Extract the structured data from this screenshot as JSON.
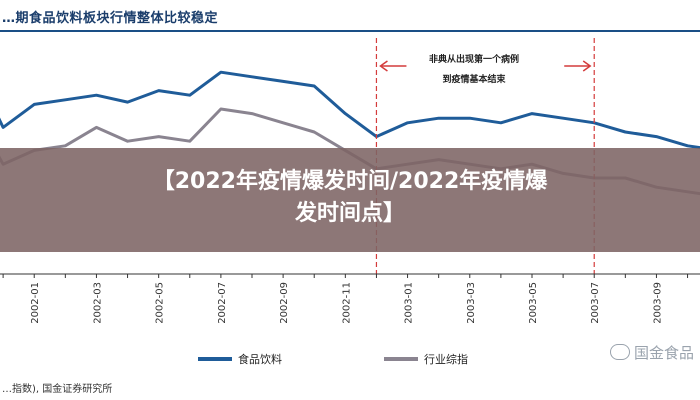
{
  "chart_data": {
    "type": "line",
    "title": "…期食品饮料板块行情整体比较稳定",
    "x_ticks": [
      "2002-01",
      "2002-03",
      "2002-05",
      "2002-07",
      "2002-09",
      "2002-11",
      "2003-01",
      "2003-03",
      "2003-05",
      "2003-07",
      "2003-09"
    ],
    "x_range": [
      "2001-11",
      "2003-11"
    ],
    "y_range": [
      0,
      100
    ],
    "grid": false,
    "legend_position": "bottom",
    "series": [
      {
        "name": "食品饮料",
        "color": "#1f5c99",
        "x": [
          "2001-11",
          "2001-12",
          "2002-01",
          "2002-02",
          "2002-03",
          "2002-04",
          "2002-05",
          "2002-06",
          "2002-07",
          "2002-08",
          "2002-09",
          "2002-10",
          "2002-11",
          "2002-12",
          "2003-01",
          "2003-02",
          "2003-03",
          "2003-04",
          "2003-05",
          "2003-06",
          "2003-07",
          "2003-08",
          "2003-09",
          "2003-10",
          "2003-11"
        ],
        "values": [
          90,
          62,
          72,
          74,
          76,
          73,
          78,
          76,
          86,
          84,
          82,
          80,
          68,
          58,
          64,
          66,
          66,
          64,
          68,
          66,
          64,
          60,
          58,
          54,
          52
        ]
      },
      {
        "name": "行业综指",
        "color": "#8a8490",
        "x": [
          "2001-11",
          "2001-12",
          "2002-01",
          "2002-02",
          "2002-03",
          "2002-04",
          "2002-05",
          "2002-06",
          "2002-07",
          "2002-08",
          "2002-09",
          "2002-10",
          "2002-11",
          "2002-12",
          "2003-01",
          "2003-02",
          "2003-03",
          "2003-04",
          "2003-05",
          "2003-06",
          "2003-07",
          "2003-08",
          "2003-09",
          "2003-10",
          "2003-11"
        ],
        "values": [
          70,
          46,
          52,
          54,
          62,
          56,
          58,
          56,
          70,
          68,
          64,
          60,
          52,
          44,
          46,
          48,
          46,
          44,
          46,
          42,
          40,
          40,
          36,
          34,
          32
        ]
      }
    ],
    "markers": [
      {
        "x": "2002-12"
      },
      {
        "x": "2003-07"
      }
    ],
    "annotation": {
      "lines": [
        "非典从出现第一个病例",
        "到疫情基本结束"
      ],
      "x_start": "2002-12",
      "x_end": "2003-07"
    },
    "source": "…指数), 国金证券研究所"
  },
  "overlay": {
    "line1": "【2022年疫情爆发时间/2022年疫情爆",
    "line2": "发时间点】"
  },
  "watermark": {
    "text": "国金食品",
    "icon": "wechat-icon"
  }
}
